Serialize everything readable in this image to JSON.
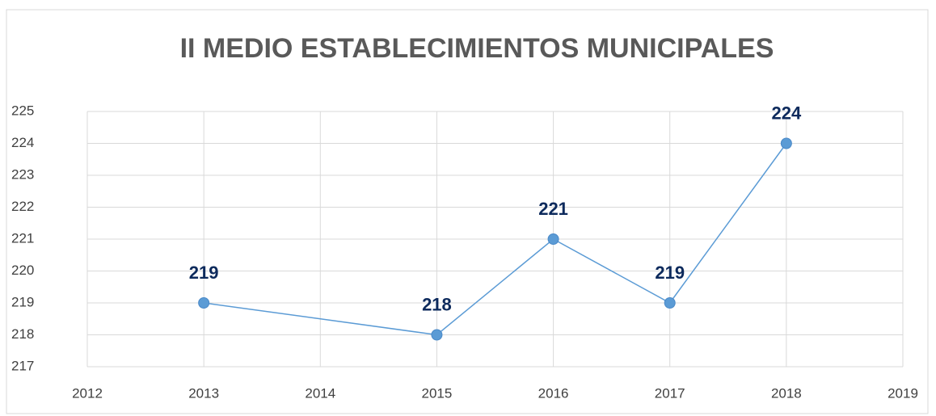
{
  "chart_data": {
    "type": "line",
    "title": "II MEDIO ESTABLECIMIENTOS MUNICIPALES",
    "x": [
      2013,
      2015,
      2016,
      2017,
      2018
    ],
    "series": [
      {
        "name": "II MEDIO",
        "color": "#5b9bd5",
        "values": [
          219,
          218,
          221,
          219,
          224
        ]
      }
    ],
    "xlim": [
      2012,
      2019
    ],
    "xticks": [
      2012,
      2013,
      2014,
      2015,
      2016,
      2017,
      2018,
      2019
    ],
    "ylim": [
      217,
      225
    ],
    "yticks": [
      217,
      218,
      219,
      220,
      221,
      222,
      223,
      224,
      225
    ],
    "grid": true
  }
}
